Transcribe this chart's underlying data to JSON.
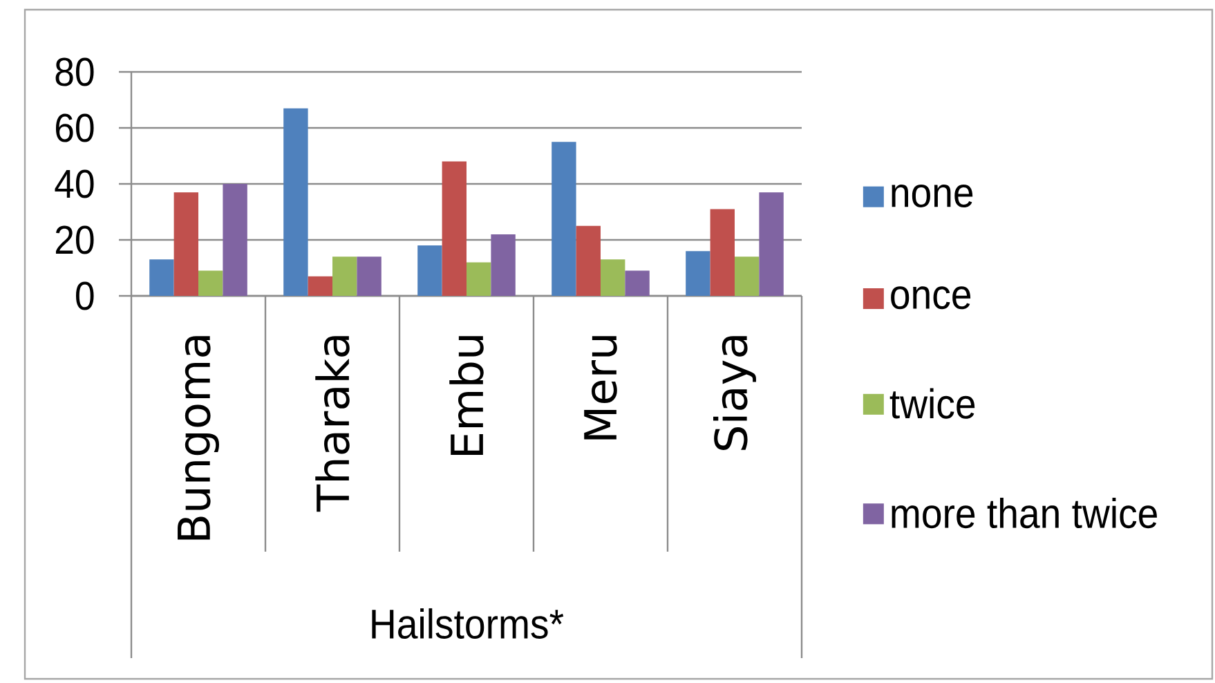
{
  "chart_data": {
    "type": "bar",
    "categories": [
      "Bungoma",
      "Tharaka",
      "Embu",
      "Meru",
      "Siaya"
    ],
    "xlabel": "Hailstorms*",
    "series": [
      {
        "name": "none",
        "color": "#4f81bd",
        "values": [
          13,
          67,
          18,
          55,
          16
        ]
      },
      {
        "name": "once",
        "color": "#c0504d",
        "values": [
          37,
          7,
          48,
          25,
          31
        ]
      },
      {
        "name": "twice",
        "color": "#9bbb59",
        "values": [
          9,
          14,
          12,
          13,
          14
        ]
      },
      {
        "name": "more than twice",
        "color": "#8064a2",
        "values": [
          40,
          14,
          22,
          9,
          37
        ]
      }
    ],
    "ylim": [
      0,
      80
    ],
    "yticks": [
      0,
      20,
      40,
      60,
      80
    ],
    "grid": "y",
    "legend": "right"
  }
}
